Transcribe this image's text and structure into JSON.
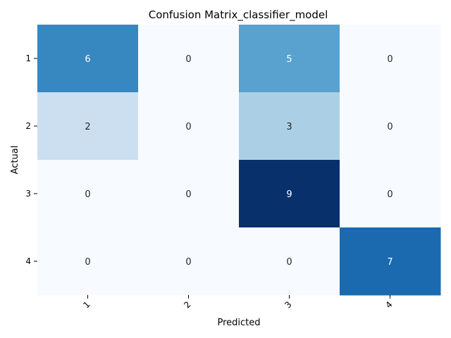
{
  "chart_data": {
    "type": "heatmap",
    "title": "Confusion Matrix_classifier_model",
    "xlabel": "Predicted",
    "ylabel": "Actual",
    "x_categories": [
      "1",
      "2",
      "3",
      "4"
    ],
    "y_categories": [
      "1",
      "2",
      "3",
      "4"
    ],
    "values": [
      [
        6,
        0,
        5,
        0
      ],
      [
        2,
        0,
        3,
        0
      ],
      [
        0,
        0,
        9,
        0
      ],
      [
        0,
        0,
        0,
        7
      ]
    ],
    "value_range": [
      0,
      9
    ],
    "colormap": "Blues",
    "colorbar": false
  }
}
